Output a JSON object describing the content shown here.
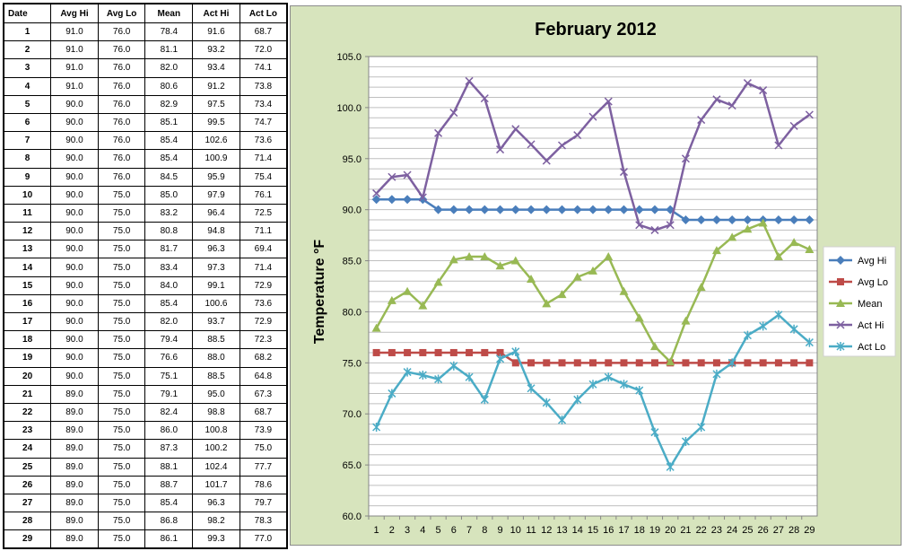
{
  "table": {
    "headers": [
      "Date",
      "Avg Hi",
      "Avg Lo",
      "Mean",
      "Act Hi",
      "Act Lo"
    ],
    "rows": [
      [
        "1",
        "91.0",
        "76.0",
        "78.4",
        "91.6",
        "68.7"
      ],
      [
        "2",
        "91.0",
        "76.0",
        "81.1",
        "93.2",
        "72.0"
      ],
      [
        "3",
        "91.0",
        "76.0",
        "82.0",
        "93.4",
        "74.1"
      ],
      [
        "4",
        "91.0",
        "76.0",
        "80.6",
        "91.2",
        "73.8"
      ],
      [
        "5",
        "90.0",
        "76.0",
        "82.9",
        "97.5",
        "73.4"
      ],
      [
        "6",
        "90.0",
        "76.0",
        "85.1",
        "99.5",
        "74.7"
      ],
      [
        "7",
        "90.0",
        "76.0",
        "85.4",
        "102.6",
        "73.6"
      ],
      [
        "8",
        "90.0",
        "76.0",
        "85.4",
        "100.9",
        "71.4"
      ],
      [
        "9",
        "90.0",
        "76.0",
        "84.5",
        "95.9",
        "75.4"
      ],
      [
        "10",
        "90.0",
        "75.0",
        "85.0",
        "97.9",
        "76.1"
      ],
      [
        "11",
        "90.0",
        "75.0",
        "83.2",
        "96.4",
        "72.5"
      ],
      [
        "12",
        "90.0",
        "75.0",
        "80.8",
        "94.8",
        "71.1"
      ],
      [
        "13",
        "90.0",
        "75.0",
        "81.7",
        "96.3",
        "69.4"
      ],
      [
        "14",
        "90.0",
        "75.0",
        "83.4",
        "97.3",
        "71.4"
      ],
      [
        "15",
        "90.0",
        "75.0",
        "84.0",
        "99.1",
        "72.9"
      ],
      [
        "16",
        "90.0",
        "75.0",
        "85.4",
        "100.6",
        "73.6"
      ],
      [
        "17",
        "90.0",
        "75.0",
        "82.0",
        "93.7",
        "72.9"
      ],
      [
        "18",
        "90.0",
        "75.0",
        "79.4",
        "88.5",
        "72.3"
      ],
      [
        "19",
        "90.0",
        "75.0",
        "76.6",
        "88.0",
        "68.2"
      ],
      [
        "20",
        "90.0",
        "75.0",
        "75.1",
        "88.5",
        "64.8"
      ],
      [
        "21",
        "89.0",
        "75.0",
        "79.1",
        "95.0",
        "67.3"
      ],
      [
        "22",
        "89.0",
        "75.0",
        "82.4",
        "98.8",
        "68.7"
      ],
      [
        "23",
        "89.0",
        "75.0",
        "86.0",
        "100.8",
        "73.9"
      ],
      [
        "24",
        "89.0",
        "75.0",
        "87.3",
        "100.2",
        "75.0"
      ],
      [
        "25",
        "89.0",
        "75.0",
        "88.1",
        "102.4",
        "77.7"
      ],
      [
        "26",
        "89.0",
        "75.0",
        "88.7",
        "101.7",
        "78.6"
      ],
      [
        "27",
        "89.0",
        "75.0",
        "85.4",
        "96.3",
        "79.7"
      ],
      [
        "28",
        "89.0",
        "75.0",
        "86.8",
        "98.2",
        "78.3"
      ],
      [
        "29",
        "89.0",
        "75.0",
        "86.1",
        "99.3",
        "77.0"
      ]
    ]
  },
  "chart_data": {
    "type": "line",
    "title": "February 2012",
    "xlabel": "",
    "ylabel": "Temperature °F",
    "x": [
      1,
      2,
      3,
      4,
      5,
      6,
      7,
      8,
      9,
      10,
      11,
      12,
      13,
      14,
      15,
      16,
      17,
      18,
      19,
      20,
      21,
      22,
      23,
      24,
      25,
      26,
      27,
      28,
      29
    ],
    "x_tick_labels": [
      "1",
      "2",
      "3",
      "4",
      "5",
      "6",
      "7",
      "8",
      "9",
      "10",
      "11",
      "12",
      "13",
      "14",
      "15",
      "16",
      "17",
      "18",
      "19",
      "20",
      "21",
      "22",
      "23",
      "24",
      "25",
      "26",
      "27",
      "28",
      "29"
    ],
    "ylim": [
      60,
      105
    ],
    "y_tick_labels": [
      "60.0",
      "65.0",
      "70.0",
      "75.0",
      "80.0",
      "85.0",
      "90.0",
      "95.0",
      "100.0",
      "105.0"
    ],
    "grid": true,
    "legend_position": "right",
    "series": [
      {
        "name": "Avg Hi",
        "color": "#4a7ebb",
        "marker": "diamond",
        "values": [
          91.0,
          91.0,
          91.0,
          91.0,
          90.0,
          90.0,
          90.0,
          90.0,
          90.0,
          90.0,
          90.0,
          90.0,
          90.0,
          90.0,
          90.0,
          90.0,
          90.0,
          90.0,
          90.0,
          90.0,
          89.0,
          89.0,
          89.0,
          89.0,
          89.0,
          89.0,
          89.0,
          89.0,
          89.0
        ]
      },
      {
        "name": "Avg Lo",
        "color": "#be4b48",
        "marker": "square",
        "values": [
          76.0,
          76.0,
          76.0,
          76.0,
          76.0,
          76.0,
          76.0,
          76.0,
          76.0,
          75.0,
          75.0,
          75.0,
          75.0,
          75.0,
          75.0,
          75.0,
          75.0,
          75.0,
          75.0,
          75.0,
          75.0,
          75.0,
          75.0,
          75.0,
          75.0,
          75.0,
          75.0,
          75.0,
          75.0
        ]
      },
      {
        "name": "Mean",
        "color": "#98b954",
        "marker": "triangle",
        "values": [
          78.4,
          81.1,
          82.0,
          80.6,
          82.9,
          85.1,
          85.4,
          85.4,
          84.5,
          85.0,
          83.2,
          80.8,
          81.7,
          83.4,
          84.0,
          85.4,
          82.0,
          79.4,
          76.6,
          75.1,
          79.1,
          82.4,
          86.0,
          87.3,
          88.1,
          88.7,
          85.4,
          86.8,
          86.1
        ]
      },
      {
        "name": "Act Hi",
        "color": "#7d60a0",
        "marker": "x",
        "values": [
          91.6,
          93.2,
          93.4,
          91.2,
          97.5,
          99.5,
          102.6,
          100.9,
          95.9,
          97.9,
          96.4,
          94.8,
          96.3,
          97.3,
          99.1,
          100.6,
          93.7,
          88.5,
          88.0,
          88.5,
          95.0,
          98.8,
          100.8,
          100.2,
          102.4,
          101.7,
          96.3,
          98.2,
          99.3
        ]
      },
      {
        "name": "Act Lo",
        "color": "#4bacc6",
        "marker": "star",
        "values": [
          68.7,
          72.0,
          74.1,
          73.8,
          73.4,
          74.7,
          73.6,
          71.4,
          75.4,
          76.1,
          72.5,
          71.1,
          69.4,
          71.4,
          72.9,
          73.6,
          72.9,
          72.3,
          68.2,
          64.8,
          67.3,
          68.7,
          73.9,
          75.0,
          77.7,
          78.6,
          79.7,
          78.3,
          77.0
        ]
      }
    ]
  }
}
